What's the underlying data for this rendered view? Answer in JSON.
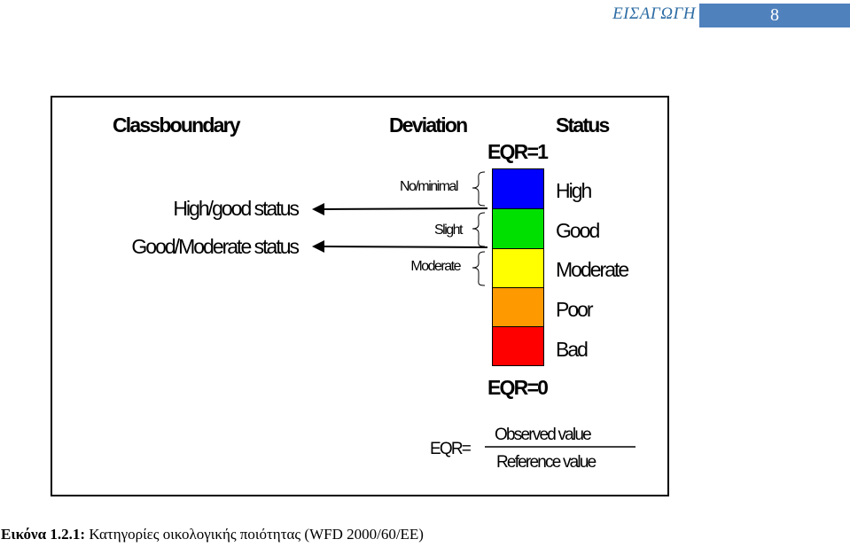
{
  "header": {
    "running_head": "ΕΙΣΑΓΩΓΗ",
    "page_number": "8"
  },
  "figure": {
    "col_class_boundary": "Classboundary",
    "col_deviation": "Deviation",
    "col_status": "Status",
    "eqr_top": "EQR=1",
    "eqr_bottom": "EQR=0",
    "boundaries": [
      "High/good status",
      "Good/Moderate status"
    ],
    "deviations": [
      "No/minimal",
      "Slight",
      "Moderate"
    ],
    "statuses": [
      {
        "label": "High",
        "color": "#0000FF"
      },
      {
        "label": "Good",
        "color": "#00E000"
      },
      {
        "label": "Moderate",
        "color": "#FFFF00"
      },
      {
        "label": "Poor",
        "color": "#FF9900"
      },
      {
        "label": "Bad",
        "color": "#FF0000"
      }
    ],
    "formula": {
      "lhs": "EQR=",
      "numerator": "Observed value",
      "denominator": "Reference value"
    }
  },
  "caption": {
    "label": "Εικόνα 1.2.1:",
    "text": " Κατηγορίες οικολογικής ποιότητας (WFD 2000/60/ΕΕ)"
  }
}
